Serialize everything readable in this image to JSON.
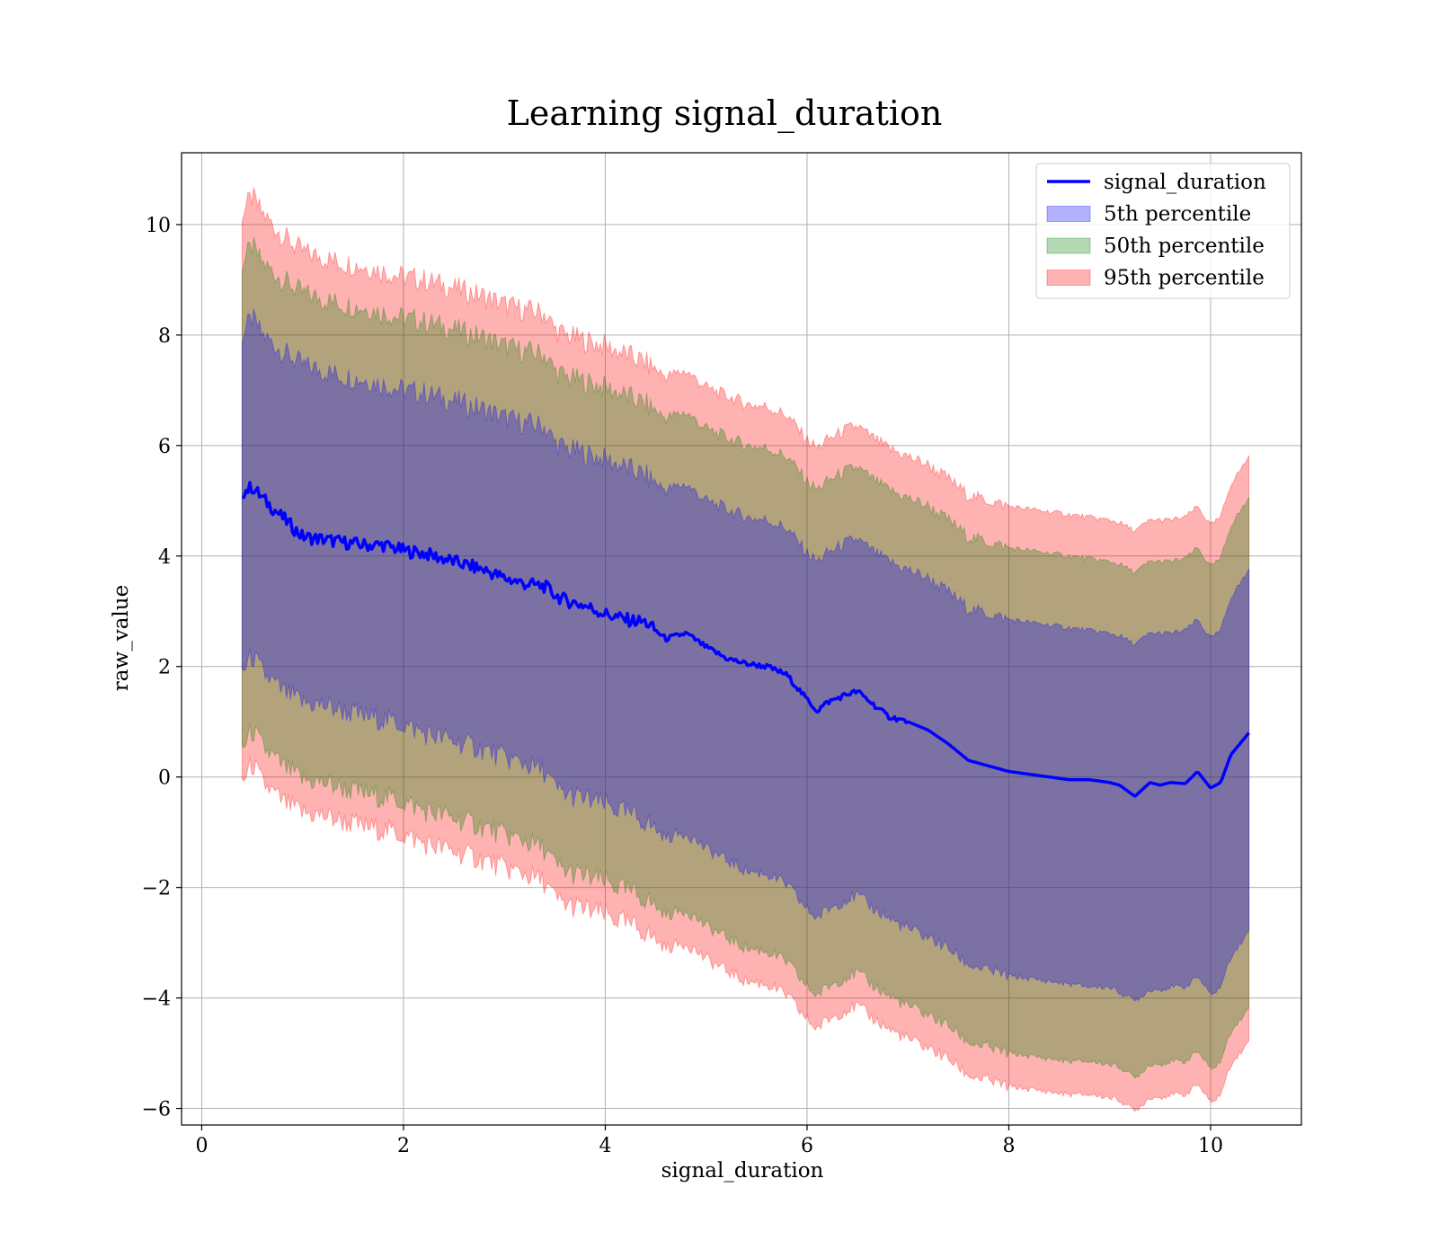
{
  "chart_data": {
    "type": "line",
    "title": "Learning signal_duration",
    "xlabel": "signal_duration",
    "ylabel": "raw_value",
    "xlim": [
      -0.2,
      10.9
    ],
    "ylim": [
      -6.3,
      11.3
    ],
    "xticks": [
      0,
      2,
      4,
      6,
      8,
      10
    ],
    "yticks": [
      -6,
      -4,
      -2,
      0,
      2,
      4,
      6,
      8,
      10
    ],
    "xtick_labels": [
      "0",
      "2",
      "4",
      "6",
      "8",
      "10"
    ],
    "ytick_labels": [
      "−6",
      "−4",
      "−2",
      "0",
      "2",
      "4",
      "6",
      "8",
      "10"
    ],
    "grid": true,
    "legend_position": "top-right",
    "x": [
      0.4,
      0.5,
      0.6,
      0.8,
      1.0,
      1.2,
      1.4,
      1.6,
      1.8,
      2.0,
      2.2,
      2.4,
      2.6,
      2.8,
      3.0,
      3.2,
      3.4,
      3.5,
      3.6,
      3.8,
      4.0,
      4.2,
      4.4,
      4.6,
      4.8,
      5.0,
      5.2,
      5.4,
      5.6,
      5.8,
      6.0,
      6.1,
      6.2,
      6.4,
      6.5,
      6.6,
      6.8,
      7.0,
      7.2,
      7.4,
      7.6,
      7.8,
      8.0,
      8.2,
      8.4,
      8.6,
      8.8,
      9.0,
      9.1,
      9.25,
      9.4,
      9.5,
      9.6,
      9.75,
      9.87,
      10.0,
      10.1,
      10.2,
      10.38
    ],
    "series": [
      {
        "name": "signal_duration",
        "kind": "line",
        "color": "#0000ff",
        "values": [
          5.15,
          5.25,
          5.05,
          4.7,
          4.35,
          4.3,
          4.25,
          4.2,
          4.2,
          4.1,
          4.05,
          3.95,
          3.85,
          3.75,
          3.6,
          3.5,
          3.45,
          3.3,
          3.2,
          3.1,
          2.95,
          2.85,
          2.8,
          2.5,
          2.6,
          2.35,
          2.15,
          2.05,
          2.0,
          1.85,
          1.4,
          1.2,
          1.35,
          1.5,
          1.55,
          1.4,
          1.1,
          1.0,
          0.85,
          0.6,
          0.3,
          0.2,
          0.1,
          0.05,
          0.0,
          -0.05,
          -0.05,
          -0.1,
          -0.15,
          -0.35,
          -0.1,
          -0.15,
          -0.1,
          -0.12,
          0.1,
          -0.2,
          -0.1,
          0.4,
          0.8
        ]
      },
      {
        "name": "5th percentile",
        "kind": "band",
        "color": "#0000ff",
        "lower": [
          1.9,
          2.2,
          1.9,
          1.55,
          1.35,
          1.3,
          1.2,
          1.1,
          1.05,
          0.95,
          0.8,
          0.7,
          0.6,
          0.5,
          0.35,
          0.25,
          0.1,
          -0.2,
          -0.3,
          -0.4,
          -0.5,
          -0.65,
          -0.8,
          -1.1,
          -1.0,
          -1.3,
          -1.5,
          -1.7,
          -1.75,
          -1.95,
          -2.4,
          -2.55,
          -2.4,
          -2.2,
          -2.15,
          -2.3,
          -2.55,
          -2.75,
          -2.9,
          -3.1,
          -3.4,
          -3.5,
          -3.6,
          -3.65,
          -3.7,
          -3.75,
          -3.8,
          -3.8,
          -3.9,
          -4.05,
          -3.85,
          -3.85,
          -3.8,
          -3.8,
          -3.6,
          -3.95,
          -3.8,
          -3.25,
          -2.8
        ],
        "upper": [
          8.0,
          8.3,
          8.0,
          7.7,
          7.45,
          7.35,
          7.25,
          7.2,
          7.1,
          7.0,
          6.95,
          6.85,
          6.75,
          6.65,
          6.5,
          6.4,
          6.35,
          6.05,
          5.95,
          5.85,
          5.75,
          5.6,
          5.45,
          5.2,
          5.3,
          5.0,
          4.85,
          4.7,
          4.65,
          4.5,
          4.05,
          3.9,
          4.05,
          4.25,
          4.3,
          4.15,
          3.9,
          3.75,
          3.6,
          3.35,
          3.05,
          2.95,
          2.85,
          2.8,
          2.75,
          2.7,
          2.65,
          2.6,
          2.55,
          2.4,
          2.6,
          2.6,
          2.6,
          2.65,
          2.85,
          2.5,
          2.65,
          3.25,
          3.75
        ]
      },
      {
        "name": "50th percentile",
        "kind": "band",
        "color": "#008000",
        "lower": [
          0.5,
          0.85,
          0.55,
          0.2,
          -0.05,
          -0.1,
          -0.2,
          -0.3,
          -0.35,
          -0.45,
          -0.6,
          -0.7,
          -0.8,
          -0.9,
          -1.05,
          -1.15,
          -1.3,
          -1.6,
          -1.7,
          -1.8,
          -1.9,
          -2.05,
          -2.2,
          -2.5,
          -2.4,
          -2.7,
          -2.9,
          -3.1,
          -3.15,
          -3.35,
          -3.8,
          -3.95,
          -3.8,
          -3.6,
          -3.55,
          -3.7,
          -3.95,
          -4.15,
          -4.3,
          -4.5,
          -4.8,
          -4.9,
          -5.0,
          -5.05,
          -5.1,
          -5.15,
          -5.15,
          -5.2,
          -5.25,
          -5.45,
          -5.2,
          -5.2,
          -5.15,
          -5.15,
          -4.95,
          -5.3,
          -5.15,
          -4.6,
          -4.2
        ],
        "upper": [
          9.3,
          9.6,
          9.3,
          9.0,
          8.75,
          8.65,
          8.55,
          8.5,
          8.4,
          8.3,
          8.25,
          8.15,
          8.05,
          7.95,
          7.8,
          7.7,
          7.65,
          7.35,
          7.25,
          7.15,
          7.05,
          6.9,
          6.75,
          6.5,
          6.6,
          6.3,
          6.15,
          6.0,
          5.95,
          5.8,
          5.35,
          5.2,
          5.35,
          5.55,
          5.6,
          5.45,
          5.2,
          5.05,
          4.9,
          4.65,
          4.35,
          4.25,
          4.15,
          4.1,
          4.05,
          4.0,
          3.95,
          3.9,
          3.85,
          3.7,
          3.9,
          3.9,
          3.9,
          3.95,
          4.15,
          3.8,
          3.95,
          4.55,
          5.05
        ]
      },
      {
        "name": "95th percentile",
        "kind": "band",
        "color": "#ff0000",
        "lower": [
          -0.1,
          0.25,
          -0.1,
          -0.45,
          -0.65,
          -0.7,
          -0.8,
          -0.9,
          -0.95,
          -1.05,
          -1.2,
          -1.3,
          -1.4,
          -1.5,
          -1.65,
          -1.75,
          -1.9,
          -2.2,
          -2.3,
          -2.4,
          -2.5,
          -2.65,
          -2.8,
          -3.1,
          -3.0,
          -3.3,
          -3.5,
          -3.7,
          -3.75,
          -3.95,
          -4.4,
          -4.55,
          -4.4,
          -4.2,
          -4.15,
          -4.3,
          -4.55,
          -4.75,
          -4.9,
          -5.1,
          -5.4,
          -5.5,
          -5.6,
          -5.65,
          -5.7,
          -5.75,
          -5.75,
          -5.8,
          -5.85,
          -6.05,
          -5.8,
          -5.8,
          -5.75,
          -5.75,
          -5.55,
          -5.9,
          -5.75,
          -5.2,
          -4.8
        ],
        "upper": [
          10.2,
          10.5,
          10.2,
          9.8,
          9.5,
          9.4,
          9.3,
          9.25,
          9.15,
          9.05,
          9.0,
          8.9,
          8.8,
          8.7,
          8.55,
          8.45,
          8.4,
          8.1,
          8.0,
          7.9,
          7.8,
          7.65,
          7.5,
          7.25,
          7.35,
          7.05,
          6.9,
          6.75,
          6.7,
          6.55,
          6.1,
          5.95,
          6.1,
          6.3,
          6.35,
          6.2,
          5.95,
          5.8,
          5.65,
          5.4,
          5.1,
          5.0,
          4.9,
          4.85,
          4.8,
          4.75,
          4.7,
          4.65,
          4.6,
          4.45,
          4.65,
          4.65,
          4.65,
          4.7,
          4.9,
          4.55,
          4.7,
          5.3,
          5.8
        ]
      }
    ]
  }
}
